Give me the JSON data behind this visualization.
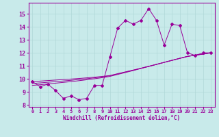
{
  "xlabel": "Windchill (Refroidissement éolien,°C)",
  "bg_color": "#c8eaea",
  "line_color": "#990099",
  "grid_color": "#b0d8d8",
  "x_data": [
    0,
    1,
    2,
    3,
    4,
    5,
    6,
    7,
    8,
    9,
    10,
    11,
    12,
    13,
    14,
    15,
    16,
    17,
    18,
    19,
    20,
    21,
    22,
    23
  ],
  "y_main": [
    9.8,
    9.4,
    9.6,
    9.1,
    8.5,
    8.7,
    8.4,
    8.5,
    9.5,
    9.5,
    11.7,
    13.9,
    14.5,
    14.2,
    14.5,
    15.4,
    14.5,
    12.6,
    14.2,
    14.1,
    12.0,
    11.8,
    12.0,
    12.0
  ],
  "y_line1": [
    9.8,
    9.83,
    9.87,
    9.91,
    9.95,
    9.99,
    10.03,
    10.08,
    10.13,
    10.19,
    10.26,
    10.4,
    10.54,
    10.68,
    10.82,
    10.97,
    11.12,
    11.27,
    11.42,
    11.58,
    11.73,
    11.82,
    11.9,
    12.0
  ],
  "y_line2": [
    9.65,
    9.69,
    9.74,
    9.79,
    9.84,
    9.89,
    9.95,
    10.01,
    10.08,
    10.15,
    10.24,
    10.38,
    10.52,
    10.66,
    10.81,
    10.96,
    11.11,
    11.27,
    11.42,
    11.57,
    11.72,
    11.82,
    11.9,
    12.0
  ],
  "y_line3": [
    9.5,
    9.55,
    9.61,
    9.67,
    9.73,
    9.79,
    9.86,
    9.93,
    10.01,
    10.09,
    10.19,
    10.34,
    10.49,
    10.64,
    10.8,
    10.95,
    11.11,
    11.27,
    11.43,
    11.58,
    11.73,
    11.83,
    11.91,
    12.01
  ],
  "xlim": [
    -0.5,
    23.5
  ],
  "ylim": [
    7.85,
    15.85
  ],
  "yticks": [
    8,
    9,
    10,
    11,
    12,
    13,
    14,
    15
  ],
  "xticks": [
    0,
    1,
    2,
    3,
    4,
    5,
    6,
    7,
    8,
    9,
    10,
    11,
    12,
    13,
    14,
    15,
    16,
    17,
    18,
    19,
    20,
    21,
    22,
    23
  ]
}
